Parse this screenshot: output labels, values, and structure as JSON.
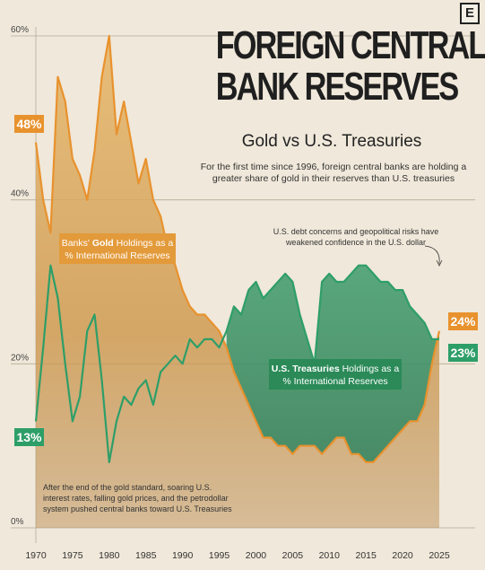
{
  "brand": {
    "logo_text": "E"
  },
  "header": {
    "title_line1": "FOREIGN CENTRAL",
    "title_line2": "BANK RESERVES",
    "subtitle": "Gold vs U.S. Treasuries",
    "description": "For the first time since 1996, foreign central banks are holding a greater share of gold in their reserves than U.S. treasuries"
  },
  "annotations": {
    "top_right": "U.S. debt concerns and geopolitical risks have weakened confidence in the U.S. dollar",
    "bottom_left": "After the end of the gold standard, soaring U.S. interest rates, falling gold prices, and the petrodollar system pushed central banks toward U.S. Treasuries"
  },
  "colors": {
    "gold": "#e8922e",
    "gold_fill": "#d4a35c",
    "treasury": "#2e9e68",
    "treasury_fill": "#2f8a5c",
    "background": "#f0e8da",
    "gridline": "#b5aa98"
  },
  "chart_data": {
    "type": "line",
    "x_ticks": [
      "1970",
      "1975",
      "1980",
      "1985",
      "1990",
      "1995",
      "2000",
      "2005",
      "2010",
      "2015",
      "2020",
      "2025"
    ],
    "y_ticks": [
      "0%",
      "20%",
      "40%",
      "60%"
    ],
    "ylim": [
      0,
      60
    ],
    "xlim": [
      1970,
      2025
    ],
    "grid": true,
    "series": [
      {
        "name": "Banks' Gold Holdings as a % International Reserves",
        "label_prefix": "Banks' ",
        "label_bold": "Gold",
        "label_suffix": " Holdings as a % International Reserves",
        "color": "#e8922e",
        "start_label": "48%",
        "end_label": "24%",
        "x": [
          1970,
          1971,
          1972,
          1973,
          1974,
          1975,
          1976,
          1977,
          1978,
          1979,
          1980,
          1981,
          1982,
          1983,
          1984,
          1985,
          1986,
          1987,
          1988,
          1989,
          1990,
          1991,
          1992,
          1993,
          1994,
          1995,
          1996,
          1997,
          1998,
          1999,
          2000,
          2001,
          2002,
          2003,
          2004,
          2005,
          2006,
          2007,
          2008,
          2009,
          2010,
          2011,
          2012,
          2013,
          2014,
          2015,
          2016,
          2017,
          2018,
          2019,
          2020,
          2021,
          2022,
          2023,
          2024,
          2025
        ],
        "values": [
          47,
          40,
          36,
          55,
          52,
          45,
          43,
          40,
          46,
          55,
          60,
          48,
          52,
          47,
          42,
          45,
          40,
          38,
          34,
          32,
          29,
          27,
          26,
          26,
          25,
          24,
          22,
          19,
          17,
          15,
          13,
          11,
          11,
          10,
          10,
          9,
          10,
          10,
          10,
          9,
          10,
          11,
          11,
          9,
          9,
          8,
          8,
          9,
          10,
          11,
          12,
          13,
          13,
          15,
          20,
          24
        ]
      },
      {
        "name": "U.S. Treasuries Holdings as a % International Reserves",
        "label_prefix": "",
        "label_bold": "U.S. Treasuries",
        "label_suffix": " Holdings as a % International Reserves",
        "color": "#2e9e68",
        "start_label": "13%",
        "end_label": "23%",
        "x": [
          1970,
          1971,
          1972,
          1973,
          1974,
          1975,
          1976,
          1977,
          1978,
          1979,
          1980,
          1981,
          1982,
          1983,
          1984,
          1985,
          1986,
          1987,
          1988,
          1989,
          1990,
          1991,
          1992,
          1993,
          1994,
          1995,
          1996,
          1997,
          1998,
          1999,
          2000,
          2001,
          2002,
          2003,
          2004,
          2005,
          2006,
          2007,
          2008,
          2009,
          2010,
          2011,
          2012,
          2013,
          2014,
          2015,
          2016,
          2017,
          2018,
          2019,
          2020,
          2021,
          2022,
          2023,
          2024,
          2025
        ],
        "values": [
          13,
          22,
          32,
          28,
          20,
          13,
          16,
          24,
          26,
          18,
          8,
          13,
          16,
          15,
          17,
          18,
          15,
          19,
          20,
          21,
          20,
          23,
          22,
          23,
          23,
          22,
          24,
          27,
          26,
          29,
          30,
          28,
          29,
          30,
          31,
          30,
          26,
          23,
          20,
          30,
          31,
          30,
          30,
          31,
          32,
          32,
          31,
          30,
          30,
          29,
          29,
          27,
          26,
          25,
          23,
          23
        ]
      }
    ]
  }
}
